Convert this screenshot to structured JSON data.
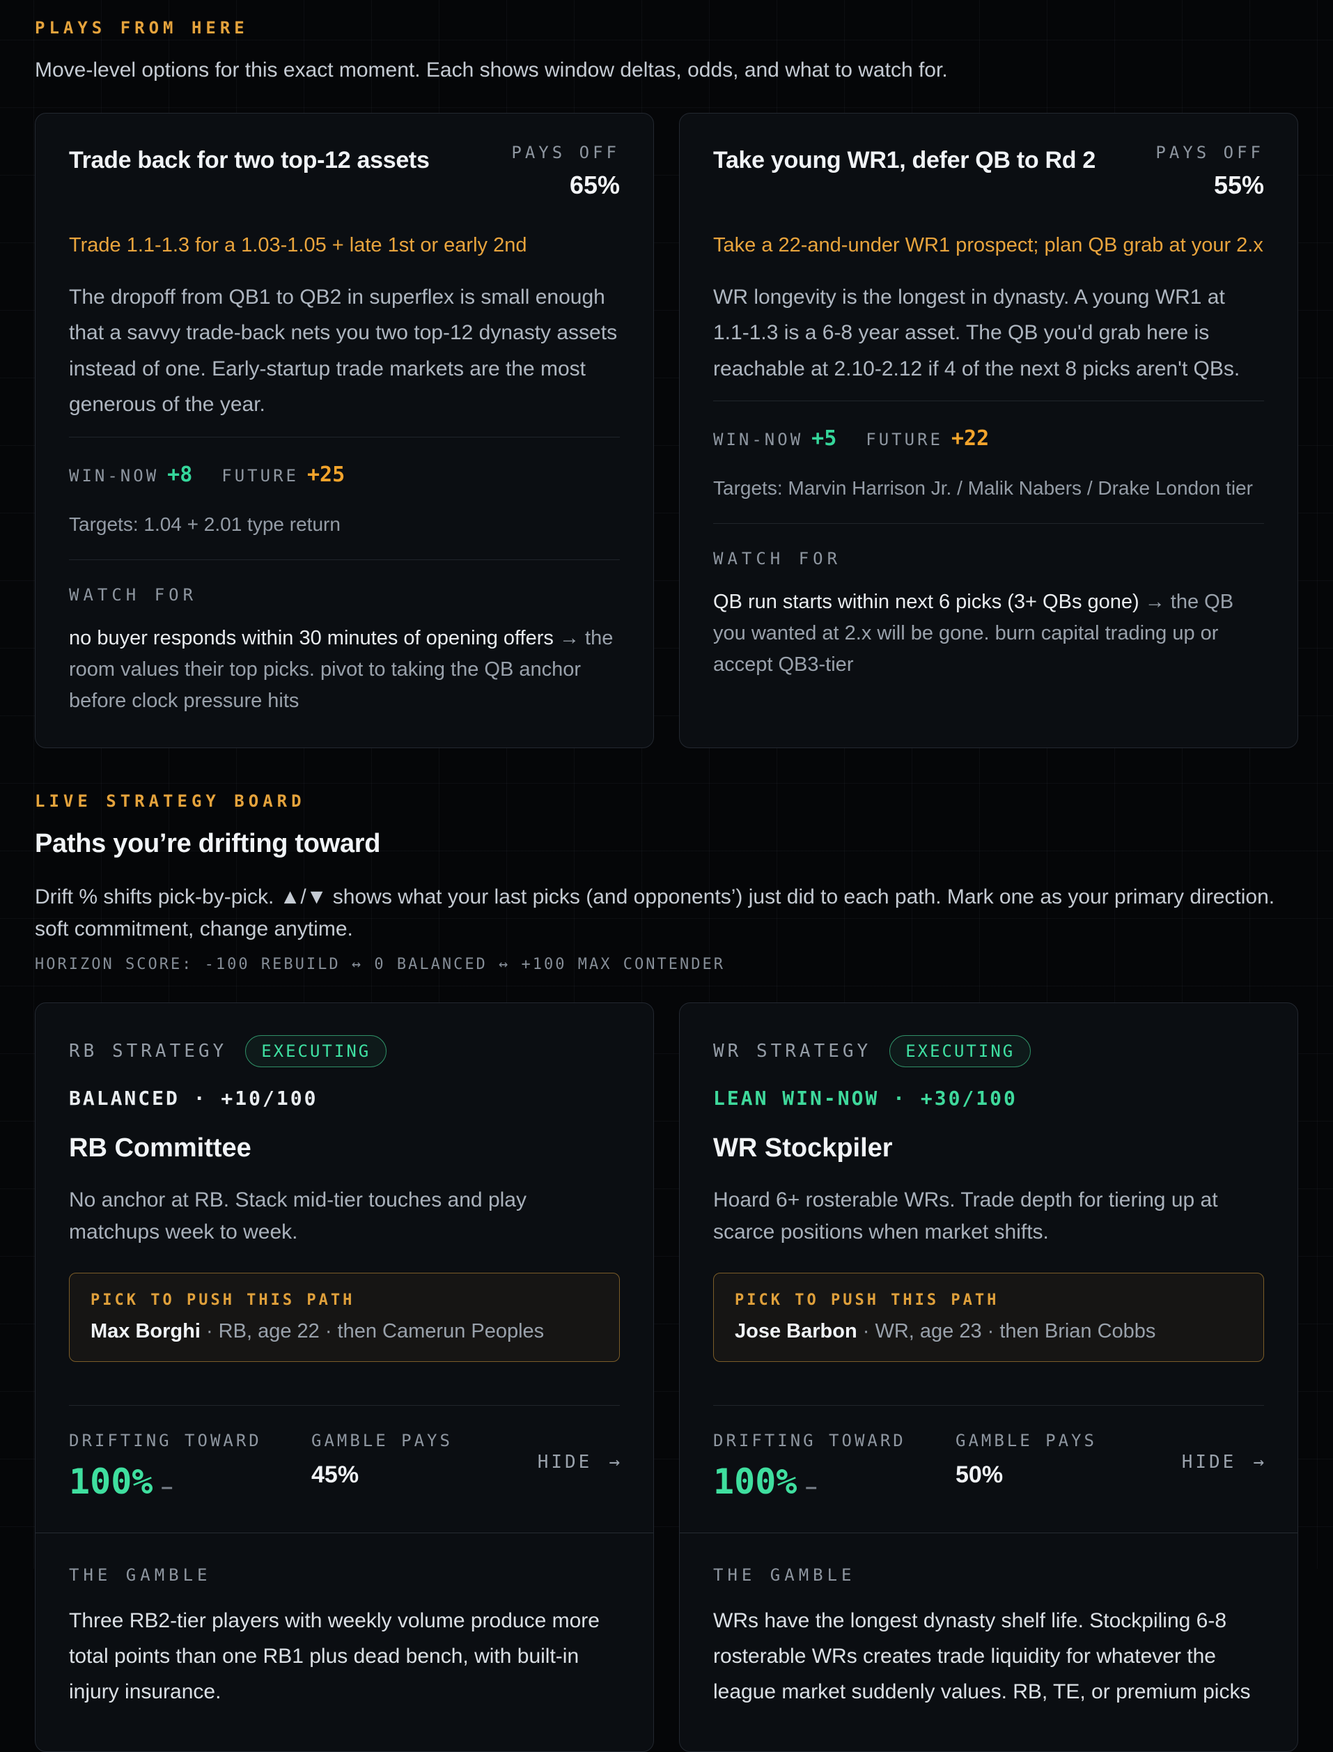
{
  "theme": {
    "page_bg": "#050608",
    "card_bg": "#0b0e12",
    "accent_orange": "#e8a43d",
    "accent_green": "#3fd99c"
  },
  "plays": {
    "section_label": "PLAYS FROM HERE",
    "section_subtitle": "Move-level options for this exact moment. Each shows window deltas, odds, and what to watch for.",
    "labels": {
      "pays_off": "PAYS OFF",
      "win_now": "WIN-NOW",
      "future": "FUTURE",
      "watch_for": "WATCH FOR"
    },
    "cards": [
      {
        "title": "Trade back for two top-12 assets",
        "odds": "65%",
        "callout": "Trade 1.1-1.3 for a 1.03-1.05 + late 1st or early 2nd",
        "body": "The dropoff from QB1 to QB2 in superflex is small enough that a savvy trade-back nets you two top-12 dynasty assets instead of one. Early-startup trade markets are the most generous of the year.",
        "win_now": "+8",
        "future": "+25",
        "targets": "Targets: 1.04 + 2.01 type return",
        "watch_main": "no buyer responds within 30 minutes of opening offers",
        "watch_rest": "→ the room values their top picks. pivot to taking the QB anchor before clock pressure hits"
      },
      {
        "title": "Take young WR1, defer QB to Rd 2",
        "odds": "55%",
        "callout": "Take a 22-and-under WR1 prospect; plan QB grab at your 2.x",
        "body": "WR longevity is the longest in dynasty. A young WR1 at 1.1-1.3 is a 6-8 year asset. The QB you'd grab here is reachable at 2.10-2.12 if 4 of the next 8 picks aren't QBs.",
        "win_now": "+5",
        "future": "+22",
        "targets": "Targets: Marvin Harrison Jr. / Malik Nabers / Drake London tier",
        "watch_main": "QB run starts within next 6 picks (3+ QBs gone)",
        "watch_rest": "→ the QB you wanted at 2.x will be gone. burn capital trading up or accept QB3-tier"
      }
    ]
  },
  "board": {
    "section_label": "LIVE STRATEGY BOARD",
    "title": "Paths you’re drifting toward",
    "subtitle": "Drift % shifts pick-by-pick. ▲/▼ shows what your last picks (and opponents’) just did to each path. Mark one as your primary direction. soft commitment, change anytime.",
    "horizon": "HORIZON SCORE: -100 REBUILD ↔ 0 BALANCED ↔ +100 MAX CONTENDER",
    "labels": {
      "executing": "EXECUTING",
      "pick": "PICK TO PUSH THIS PATH",
      "drifting": "DRIFTING TOWARD",
      "gamble_pays": "GAMBLE PAYS",
      "hide": "HIDE",
      "hide_arrow": "→",
      "gamble": "THE GAMBLE"
    },
    "cards": [
      {
        "kind": "RB STRATEGY",
        "score": "BALANCED · +10/100",
        "title": "RB Committee",
        "description": "No anchor at RB. Stack mid-tier touches and play matchups week to week.",
        "pick_player": "Max Borghi",
        "pick_details": "· RB, age 22 · then Camerun Peoples",
        "drift_pct": "100%",
        "drift_trend": "–",
        "gamble_pct": "45%",
        "gamble_text": "Three RB2-tier players with weekly volume produce more total points than one RB1 plus dead bench, with built-in injury insurance."
      },
      {
        "kind": "WR STRATEGY",
        "score": "LEAN WIN-NOW · +30/100",
        "title": "WR Stockpiler",
        "description": "Hoard 6+ rosterable WRs. Trade depth for tiering up at scarce positions when market shifts.",
        "pick_player": "Jose Barbon",
        "pick_details": "· WR, age 23 · then Brian Cobbs",
        "drift_pct": "100%",
        "drift_trend": "–",
        "gamble_pct": "50%",
        "gamble_text": "WRs have the longest dynasty shelf life. Stockpiling 6-8 rosterable WRs creates trade liquidity for whatever the league market suddenly values. RB, TE, or premium picks"
      }
    ]
  }
}
